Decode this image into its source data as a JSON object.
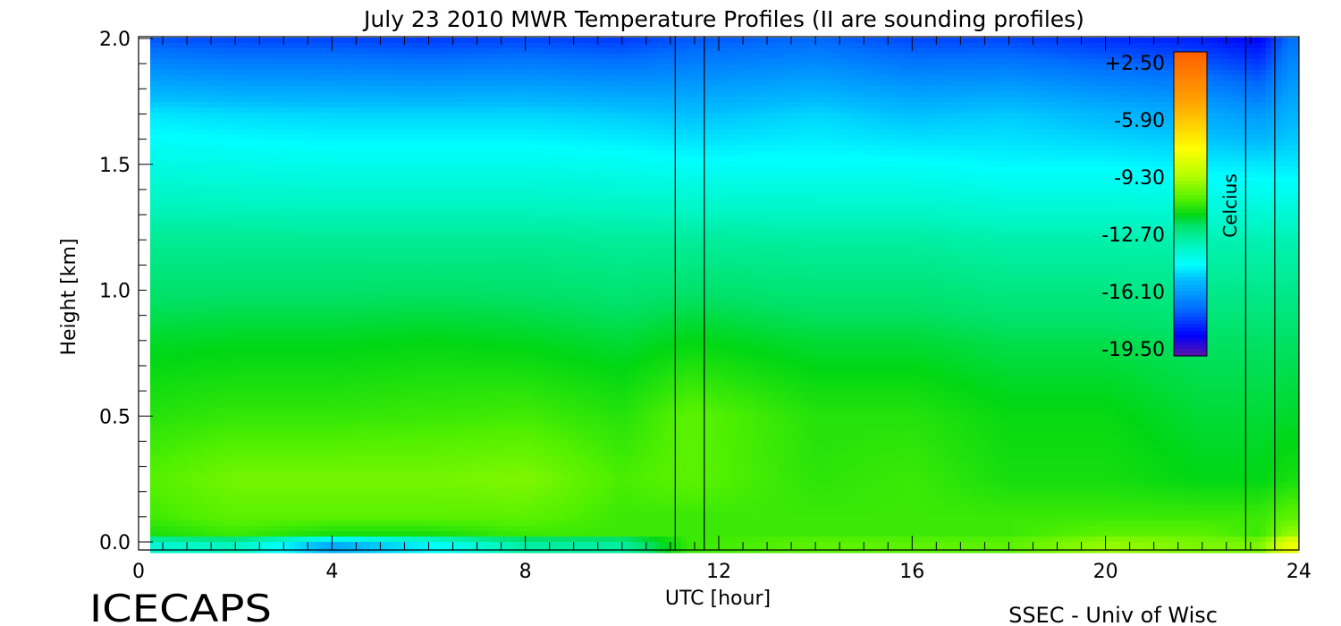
{
  "footer": {
    "left_label": "ICECAPS",
    "right_label": "SSEC - Univ of Wisc"
  },
  "chart_data": {
    "type": "heatmap",
    "title": "July 23 2010 MWR Temperature Profiles (II are sounding profiles)",
    "xlabel": "UTC [hour]",
    "ylabel": "Height [km]",
    "xlim": [
      0,
      24
    ],
    "ylim": [
      0.0,
      2.0
    ],
    "x_ticks": [
      0,
      4,
      8,
      12,
      16,
      20,
      24
    ],
    "y_ticks": [
      "0.0",
      "0.5",
      "1.0",
      "1.5",
      "2.0"
    ],
    "x_minor_step": 0.5,
    "y_minor_step": 0.1,
    "colorbar": {
      "label": "Celcius",
      "ticks": [
        "+2.50",
        "-5.90",
        "-9.30",
        "-12.70",
        "-16.10",
        "-19.50"
      ],
      "range": [
        -19.5,
        2.5
      ]
    },
    "sounding_profiles_utc": [
      11.1,
      11.7,
      22.9,
      23.5
    ],
    "temperature_field_C": {
      "heights_km": [
        0.0,
        0.03,
        0.1,
        0.25,
        0.5,
        0.8,
        1.2,
        1.5,
        1.7,
        2.0
      ],
      "times_utc": [
        0,
        2,
        4,
        6,
        8,
        10,
        11.4,
        14,
        16,
        18,
        20,
        22,
        23.2,
        23.8
      ],
      "values": [
        [
          -12.0,
          -11.5,
          -14.5,
          -13.0,
          -11.0,
          -11.0,
          -8.5,
          -8.0,
          -8.0,
          -8.0,
          -7.0,
          -7.5,
          -7.5,
          -5.0
        ],
        [
          -9.0,
          -8.5,
          -9.0,
          -9.0,
          -8.5,
          -8.5,
          -8.5,
          -8.5,
          -8.5,
          -8.5,
          -8.0,
          -8.0,
          -8.5,
          -7.0
        ],
        [
          -8.5,
          -8.0,
          -8.0,
          -8.0,
          -8.0,
          -8.5,
          -8.5,
          -8.5,
          -8.5,
          -8.5,
          -8.5,
          -8.5,
          -8.5,
          -8.0
        ],
        [
          -8.2,
          -7.6,
          -7.6,
          -7.6,
          -7.4,
          -8.3,
          -8.0,
          -8.7,
          -8.5,
          -9.0,
          -9.0,
          -9.3,
          -9.3,
          -9.0
        ],
        [
          -8.8,
          -8.6,
          -8.6,
          -8.5,
          -8.4,
          -8.8,
          -8.0,
          -8.8,
          -8.8,
          -9.2,
          -9.2,
          -9.6,
          -9.6,
          -9.5
        ],
        [
          -9.5,
          -9.4,
          -9.4,
          -9.3,
          -9.4,
          -9.6,
          -9.3,
          -9.6,
          -9.6,
          -9.8,
          -9.8,
          -10.0,
          -10.0,
          -10.0
        ],
        [
          -10.8,
          -10.8,
          -10.8,
          -10.8,
          -10.8,
          -10.9,
          -10.9,
          -11.0,
          -11.0,
          -11.2,
          -11.2,
          -11.3,
          -11.3,
          -11.3
        ],
        [
          -12.3,
          -12.4,
          -12.5,
          -12.5,
          -12.5,
          -12.6,
          -12.8,
          -12.8,
          -12.8,
          -13.0,
          -13.0,
          -13.2,
          -13.3,
          -13.3
        ],
        [
          -13.3,
          -13.5,
          -13.6,
          -13.6,
          -13.6,
          -13.8,
          -14.0,
          -13.6,
          -14.0,
          -13.8,
          -14.2,
          -14.5,
          -15.0,
          -14.3
        ],
        [
          -16.5,
          -16.8,
          -16.8,
          -17.0,
          -16.8,
          -17.0,
          -16.5,
          -16.2,
          -16.8,
          -16.8,
          -17.2,
          -17.5,
          -18.0,
          -16.0
        ]
      ]
    }
  }
}
